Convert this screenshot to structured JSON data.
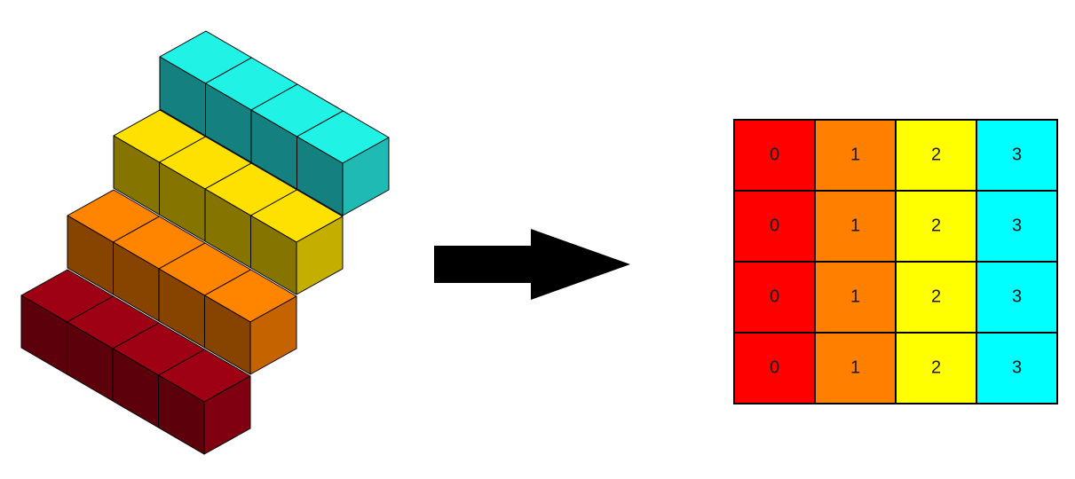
{
  "diagram": {
    "stack": {
      "rows": [
        {
          "name": "cyan",
          "top": "#21f2e6",
          "front": "#148080",
          "side": "#1fbab4"
        },
        {
          "name": "yellow",
          "top": "#ffe100",
          "front": "#857500",
          "side": "#c4ae00"
        },
        {
          "name": "orange",
          "top": "#ff8400",
          "front": "#874300",
          "side": "#c46300"
        },
        {
          "name": "red",
          "top": "#9e0014",
          "front": "#5c000b",
          "side": "#800012"
        }
      ],
      "cubes_per_row": 4
    },
    "arrow": {
      "color": "#000000"
    },
    "grid": {
      "columns": [
        {
          "label": "0",
          "color": "#ff0000"
        },
        {
          "label": "1",
          "color": "#ff8000"
        },
        {
          "label": "2",
          "color": "#ffff00"
        },
        {
          "label": "3",
          "color": "#00ffff"
        }
      ],
      "rows": 4,
      "border_color": "#000000"
    }
  }
}
